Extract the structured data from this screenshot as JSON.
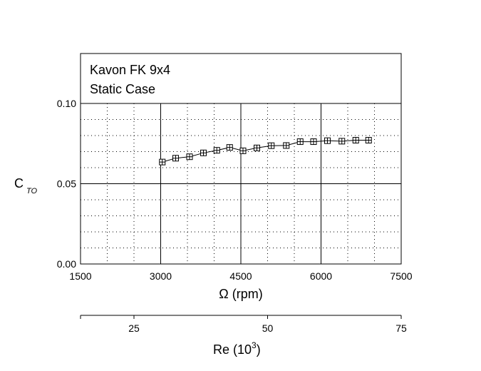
{
  "chart_data": {
    "type": "line",
    "annotation_lines": [
      "Kavon FK 9x4",
      "Static Case"
    ],
    "ylabel_main": "C",
    "ylabel_sub": "TO",
    "xlabel": "Ω (rpm)",
    "xlim": [
      1500,
      7500
    ],
    "ylim": [
      0.0,
      0.1
    ],
    "x_ticks": [
      1500,
      3000,
      4500,
      6000,
      7500
    ],
    "x_tick_labels": [
      "1500",
      "3000",
      "4500",
      "6000",
      "7500"
    ],
    "y_ticks": [
      0.0,
      0.05,
      0.1
    ],
    "y_tick_labels": [
      "0.00",
      "0.05",
      "0.10"
    ],
    "grid": "major solid, minor dotted",
    "secondary_axis": {
      "label_main": "Re (10",
      "label_sup": "3",
      "label_end": ")",
      "ticks": [
        25,
        50,
        75
      ],
      "tick_labels": [
        "25",
        "50",
        "75"
      ],
      "xlim": [
        15,
        75
      ]
    },
    "series": [
      {
        "marker": "square",
        "x": [
          3030,
          3280,
          3540,
          3800,
          4050,
          4290,
          4540,
          4800,
          5070,
          5350,
          5610,
          5860,
          6120,
          6390,
          6650,
          6890
        ],
        "y": [
          0.0635,
          0.0659,
          0.0668,
          0.0692,
          0.0708,
          0.0726,
          0.0705,
          0.0723,
          0.0737,
          0.0738,
          0.0762,
          0.0762,
          0.0768,
          0.0765,
          0.0771,
          0.0771
        ]
      }
    ]
  }
}
